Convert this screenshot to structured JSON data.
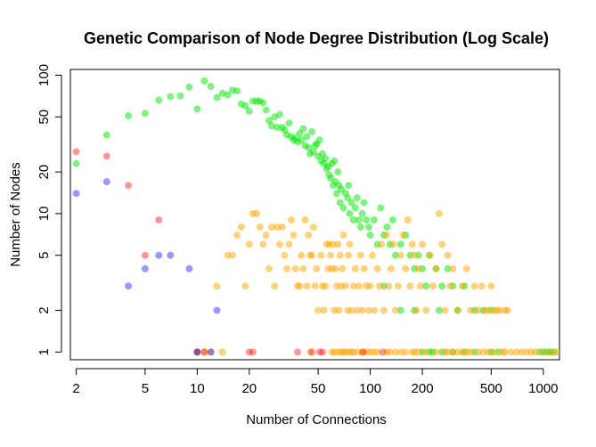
{
  "chart_data": {
    "type": "scatter",
    "title": "Genetic Comparison of Node Degree Distribution (Log Scale)",
    "xlabel": "Number of Connections",
    "ylabel": "Number of Nodes",
    "log_x": true,
    "log_y": true,
    "xlim": [
      1.85,
      1240
    ],
    "ylim": [
      0.88,
      110
    ],
    "x_ticks": [
      2,
      5,
      10,
      20,
      50,
      100,
      200,
      500,
      1000
    ],
    "x_tick_labels": [
      "2",
      "5",
      "10",
      "20",
      "50",
      "100",
      "200",
      "500",
      "1000"
    ],
    "y_ticks": [
      1,
      2,
      5,
      10,
      20,
      50,
      100
    ],
    "y_tick_labels": [
      "1",
      "2",
      "5",
      "10",
      "20",
      "50",
      "100"
    ],
    "grid": false,
    "legend": "none",
    "series": [
      {
        "color": "#00e600",
        "opacity": 0.5,
        "points": [
          [
            2,
            23
          ],
          [
            3,
            37
          ],
          [
            4,
            51
          ],
          [
            5,
            53
          ],
          [
            6,
            66
          ],
          [
            7,
            70
          ],
          [
            8,
            71
          ],
          [
            9,
            82
          ],
          [
            10,
            57
          ],
          [
            11,
            91
          ],
          [
            12,
            83
          ],
          [
            13,
            69
          ],
          [
            14,
            74
          ],
          [
            15,
            72
          ],
          [
            16,
            78
          ],
          [
            17,
            77
          ],
          [
            18,
            62
          ],
          [
            19,
            60
          ],
          [
            20,
            55
          ],
          [
            21,
            65
          ],
          [
            22,
            65
          ],
          [
            23,
            65
          ],
          [
            24,
            63
          ],
          [
            25,
            56
          ],
          [
            26,
            47
          ],
          [
            27,
            43
          ],
          [
            28,
            50
          ],
          [
            29,
            42
          ],
          [
            30,
            52
          ],
          [
            31,
            42
          ],
          [
            32,
            40
          ],
          [
            33,
            37
          ],
          [
            34,
            45
          ],
          [
            35,
            36
          ],
          [
            36,
            34
          ],
          [
            37,
            35
          ],
          [
            38,
            33
          ],
          [
            39,
            38
          ],
          [
            40,
            34
          ],
          [
            41,
            41
          ],
          [
            42,
            31
          ],
          [
            43,
            36
          ],
          [
            44,
            30
          ],
          [
            45,
            27
          ],
          [
            46,
            39
          ],
          [
            47,
            28
          ],
          [
            48,
            31
          ],
          [
            49,
            32
          ],
          [
            50,
            26
          ],
          [
            51,
            34
          ],
          [
            52,
            24
          ],
          [
            53,
            27
          ],
          [
            54,
            23
          ],
          [
            55,
            25
          ],
          [
            56,
            21
          ],
          [
            57,
            22
          ],
          [
            58,
            19
          ],
          [
            59,
            18
          ],
          [
            60,
            23
          ],
          [
            61,
            16
          ],
          [
            62,
            24
          ],
          [
            63,
            17
          ],
          [
            64,
            14
          ],
          [
            65,
            20
          ],
          [
            66,
            16
          ],
          [
            67,
            12
          ],
          [
            68,
            15
          ],
          [
            70,
            11
          ],
          [
            72,
            14
          ],
          [
            74,
            13
          ],
          [
            75,
            16
          ],
          [
            76,
            10
          ],
          [
            78,
            12
          ],
          [
            80,
            9
          ],
          [
            82,
            11
          ],
          [
            84,
            13
          ],
          [
            86,
            9
          ],
          [
            88,
            8
          ],
          [
            90,
            10
          ],
          [
            92,
            12
          ],
          [
            95,
            9
          ],
          [
            98,
            8
          ],
          [
            100,
            7
          ],
          [
            105,
            9
          ],
          [
            110,
            6
          ],
          [
            115,
            11
          ],
          [
            120,
            7
          ],
          [
            125,
            8
          ],
          [
            130,
            6
          ],
          [
            135,
            9
          ],
          [
            140,
            5
          ],
          [
            150,
            6
          ],
          [
            160,
            7
          ],
          [
            170,
            5
          ],
          [
            180,
            4
          ],
          [
            190,
            5
          ],
          [
            200,
            4
          ],
          [
            210,
            3
          ],
          [
            220,
            5
          ],
          [
            240,
            4
          ],
          [
            260,
            3
          ],
          [
            280,
            4
          ],
          [
            300,
            3
          ],
          [
            320,
            2
          ],
          [
            350,
            3
          ],
          [
            400,
            2
          ],
          [
            450,
            2
          ],
          [
            500,
            2
          ],
          [
            120,
            3
          ],
          [
            150,
            2
          ],
          [
            180,
            2
          ],
          [
            250,
            2
          ],
          [
            300,
            1
          ],
          [
            200,
            1
          ],
          [
            220,
            1
          ],
          [
            230,
            1
          ],
          [
            260,
            1
          ],
          [
            350,
            1
          ],
          [
            400,
            1
          ],
          [
            500,
            1
          ],
          [
            550,
            1
          ],
          [
            950,
            1
          ],
          [
            1000,
            1
          ],
          [
            1050,
            1
          ],
          [
            1100,
            1
          ],
          [
            1150,
            1
          ]
        ]
      },
      {
        "color": "#ffa500",
        "opacity": 0.5,
        "points": [
          [
            10,
            1
          ],
          [
            11,
            1
          ],
          [
            12,
            1
          ],
          [
            14,
            1
          ],
          [
            13,
            3
          ],
          [
            15,
            5
          ],
          [
            16,
            5
          ],
          [
            17,
            7
          ],
          [
            18,
            8
          ],
          [
            19,
            3
          ],
          [
            20,
            6
          ],
          [
            21,
            10
          ],
          [
            22,
            10
          ],
          [
            23,
            8
          ],
          [
            24,
            6
          ],
          [
            25,
            7
          ],
          [
            26,
            4
          ],
          [
            27,
            8
          ],
          [
            28,
            3
          ],
          [
            29,
            8
          ],
          [
            30,
            6
          ],
          [
            31,
            8
          ],
          [
            32,
            5
          ],
          [
            33,
            4
          ],
          [
            34,
            6
          ],
          [
            35,
            9
          ],
          [
            36,
            7
          ],
          [
            37,
            4
          ],
          [
            38,
            3
          ],
          [
            39,
            3
          ],
          [
            40,
            5
          ],
          [
            41,
            4
          ],
          [
            42,
            9
          ],
          [
            43,
            3
          ],
          [
            44,
            7
          ],
          [
            45,
            5
          ],
          [
            46,
            5
          ],
          [
            47,
            8
          ],
          [
            48,
            3
          ],
          [
            49,
            4
          ],
          [
            50,
            2
          ],
          [
            52,
            5
          ],
          [
            53,
            3
          ],
          [
            54,
            2
          ],
          [
            55,
            3
          ],
          [
            56,
            6
          ],
          [
            57,
            4
          ],
          [
            58,
            6
          ],
          [
            59,
            5
          ],
          [
            60,
            4
          ],
          [
            61,
            6
          ],
          [
            62,
            2
          ],
          [
            63,
            4
          ],
          [
            64,
            3
          ],
          [
            65,
            6
          ],
          [
            66,
            2
          ],
          [
            67,
            5
          ],
          [
            68,
            3
          ],
          [
            69,
            4
          ],
          [
            70,
            7
          ],
          [
            72,
            3
          ],
          [
            74,
            2
          ],
          [
            75,
            5
          ],
          [
            76,
            6
          ],
          [
            78,
            2
          ],
          [
            80,
            3
          ],
          [
            82,
            4
          ],
          [
            84,
            2
          ],
          [
            86,
            3
          ],
          [
            88,
            5
          ],
          [
            90,
            2
          ],
          [
            92,
            4
          ],
          [
            95,
            3
          ],
          [
            98,
            2
          ],
          [
            100,
            3
          ],
          [
            103,
            5
          ],
          [
            106,
            2
          ],
          [
            110,
            4
          ],
          [
            113,
            3
          ],
          [
            116,
            6
          ],
          [
            120,
            2
          ],
          [
            124,
            7
          ],
          [
            128,
            3
          ],
          [
            132,
            4
          ],
          [
            136,
            6
          ],
          [
            140,
            2
          ],
          [
            145,
            3
          ],
          [
            150,
            5
          ],
          [
            155,
            7
          ],
          [
            160,
            4
          ],
          [
            165,
            9
          ],
          [
            170,
            3
          ],
          [
            175,
            6
          ],
          [
            180,
            5
          ],
          [
            185,
            2
          ],
          [
            190,
            4
          ],
          [
            195,
            3
          ],
          [
            200,
            6
          ],
          [
            210,
            2
          ],
          [
            220,
            5
          ],
          [
            230,
            3
          ],
          [
            240,
            4
          ],
          [
            250,
            10
          ],
          [
            260,
            6
          ],
          [
            270,
            2
          ],
          [
            280,
            5
          ],
          [
            290,
            3
          ],
          [
            300,
            4
          ],
          [
            320,
            2
          ],
          [
            340,
            3
          ],
          [
            360,
            4
          ],
          [
            380,
            2
          ],
          [
            400,
            3
          ],
          [
            420,
            2
          ],
          [
            440,
            3
          ],
          [
            460,
            2
          ],
          [
            480,
            2
          ],
          [
            500,
            3
          ],
          [
            520,
            2
          ],
          [
            540,
            2
          ],
          [
            560,
            2
          ],
          [
            600,
            2
          ],
          [
            620,
            2
          ],
          [
            45,
            1
          ],
          [
            60,
            1
          ],
          [
            62,
            1
          ],
          [
            65,
            1
          ],
          [
            68,
            1
          ],
          [
            70,
            1
          ],
          [
            72,
            1
          ],
          [
            75,
            1
          ],
          [
            78,
            1
          ],
          [
            80,
            1
          ],
          [
            85,
            1
          ],
          [
            90,
            1
          ],
          [
            95,
            1
          ],
          [
            100,
            1
          ],
          [
            105,
            1
          ],
          [
            110,
            1
          ],
          [
            125,
            1
          ],
          [
            130,
            1
          ],
          [
            140,
            1
          ],
          [
            150,
            1
          ],
          [
            160,
            1
          ],
          [
            175,
            1
          ],
          [
            180,
            1
          ],
          [
            190,
            1
          ],
          [
            210,
            1
          ],
          [
            240,
            1
          ],
          [
            270,
            1
          ],
          [
            280,
            1
          ],
          [
            300,
            1
          ],
          [
            320,
            1
          ],
          [
            340,
            1
          ],
          [
            360,
            1
          ],
          [
            380,
            1
          ],
          [
            420,
            1
          ],
          [
            450,
            1
          ],
          [
            480,
            1
          ],
          [
            520,
            1
          ],
          [
            580,
            1
          ],
          [
            600,
            1
          ],
          [
            650,
            1
          ],
          [
            700,
            1
          ],
          [
            750,
            1
          ],
          [
            800,
            1
          ],
          [
            850,
            1
          ],
          [
            900,
            1
          ],
          [
            1000,
            1
          ],
          [
            1100,
            1
          ],
          [
            1200,
            1
          ]
        ]
      },
      {
        "color": "#ff0000",
        "opacity": 0.4,
        "points": [
          [
            2,
            28
          ],
          [
            3,
            26
          ],
          [
            4,
            16
          ],
          [
            5,
            5
          ],
          [
            6,
            9
          ],
          [
            10,
            1
          ],
          [
            11,
            1
          ],
          [
            20,
            1
          ],
          [
            21,
            1
          ],
          [
            38,
            1
          ],
          [
            46,
            1
          ],
          [
            51,
            1
          ],
          [
            53,
            1
          ],
          [
            91,
            1
          ],
          [
            118,
            1
          ]
        ]
      },
      {
        "color": "#0000ff",
        "opacity": 0.4,
        "points": [
          [
            2,
            14
          ],
          [
            3,
            17
          ],
          [
            4,
            3
          ],
          [
            5,
            4
          ],
          [
            6,
            5
          ],
          [
            7,
            5
          ],
          [
            9,
            4
          ],
          [
            10,
            1
          ],
          [
            12,
            1
          ],
          [
            13,
            2
          ]
        ]
      }
    ]
  }
}
